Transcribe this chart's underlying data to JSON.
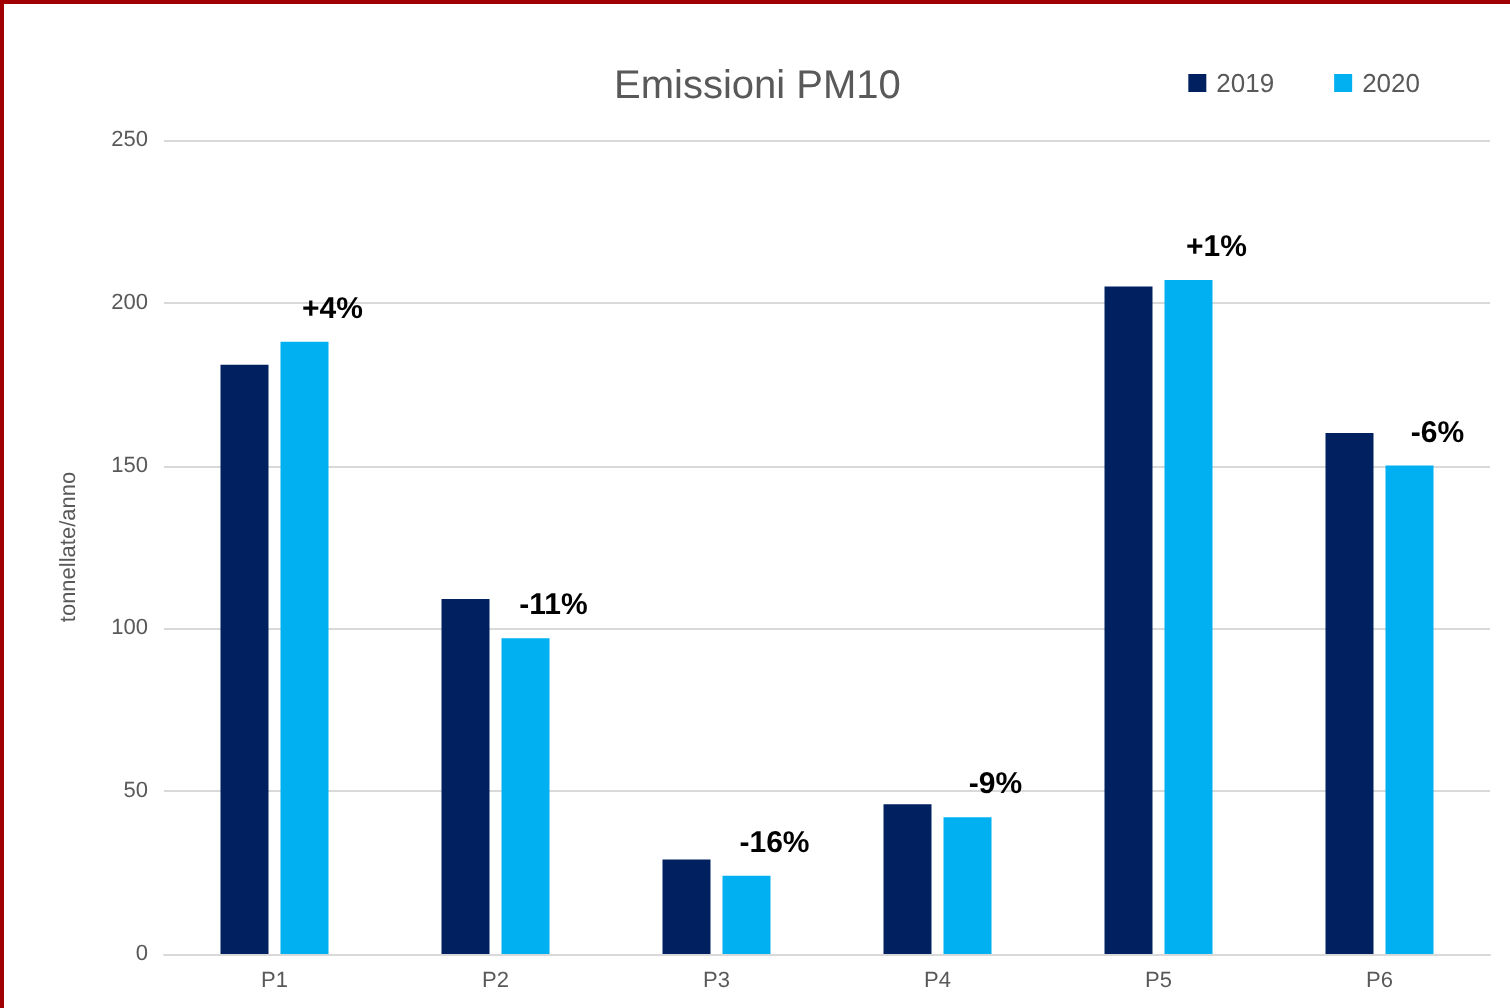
{
  "chart_data": {
    "type": "bar",
    "title": "Emissioni PM10",
    "ylabel": "tonnellate/anno",
    "categories": [
      "P1",
      "P2",
      "P3",
      "P4",
      "P5",
      "P6"
    ],
    "series": [
      {
        "name": "2019",
        "color": "#002060",
        "values": [
          181,
          109,
          29,
          46,
          205,
          160
        ]
      },
      {
        "name": "2020",
        "color": "#00b0f0",
        "values": [
          188,
          97,
          24,
          42,
          207,
          150
        ]
      }
    ],
    "ylim": [
      0,
      250
    ],
    "yticks": [
      0,
      50,
      100,
      150,
      200,
      250
    ],
    "grid": "y",
    "legend": "top right",
    "annotations": [
      {
        "text": "+4%",
        "x": "P1",
        "y": 188
      },
      {
        "text": "-11%",
        "x": "P2",
        "y": 97
      },
      {
        "text": "-16%",
        "x": "P3",
        "y": 24
      },
      {
        "text": "-9%",
        "x": "P4",
        "y": 42
      },
      {
        "text": "+1%",
        "x": "P5",
        "y": 207
      },
      {
        "text": "-6%",
        "x": "P6",
        "y": 150
      }
    ]
  }
}
